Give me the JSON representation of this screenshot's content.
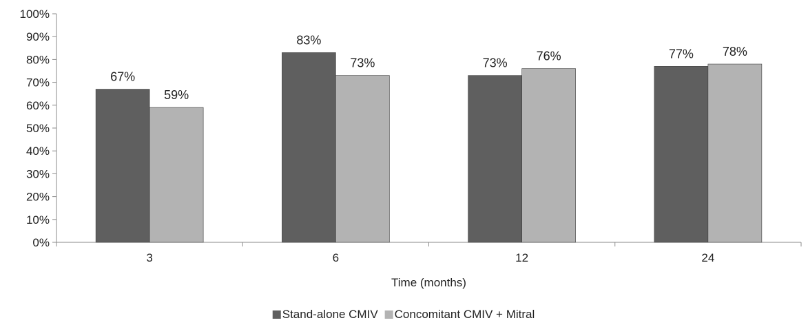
{
  "chart_data": {
    "type": "bar",
    "title": "",
    "xlabel": "Time (months)",
    "ylabel": "",
    "categories": [
      "3",
      "6",
      "12",
      "24"
    ],
    "series": [
      {
        "name": "Stand-alone CMIV",
        "color": "#5f5f5f",
        "values": [
          67,
          83,
          73,
          77
        ],
        "labels": [
          "67%",
          "83%",
          "73%",
          "77%"
        ]
      },
      {
        "name": "Concomitant CMIV + Mitral",
        "color": "#b3b3b3",
        "values": [
          59,
          73,
          76,
          78
        ],
        "labels": [
          "59%",
          "73%",
          "76%",
          "78%"
        ]
      }
    ],
    "ylim": [
      0,
      100
    ],
    "yticks": [
      0,
      10,
      20,
      30,
      40,
      50,
      60,
      70,
      80,
      90,
      100
    ],
    "ytick_labels": [
      "0%",
      "10%",
      "20%",
      "30%",
      "40%",
      "50%",
      "60%",
      "70%",
      "80%",
      "90%",
      "100%"
    ],
    "grid": false,
    "legend_position": "bottom-center"
  }
}
